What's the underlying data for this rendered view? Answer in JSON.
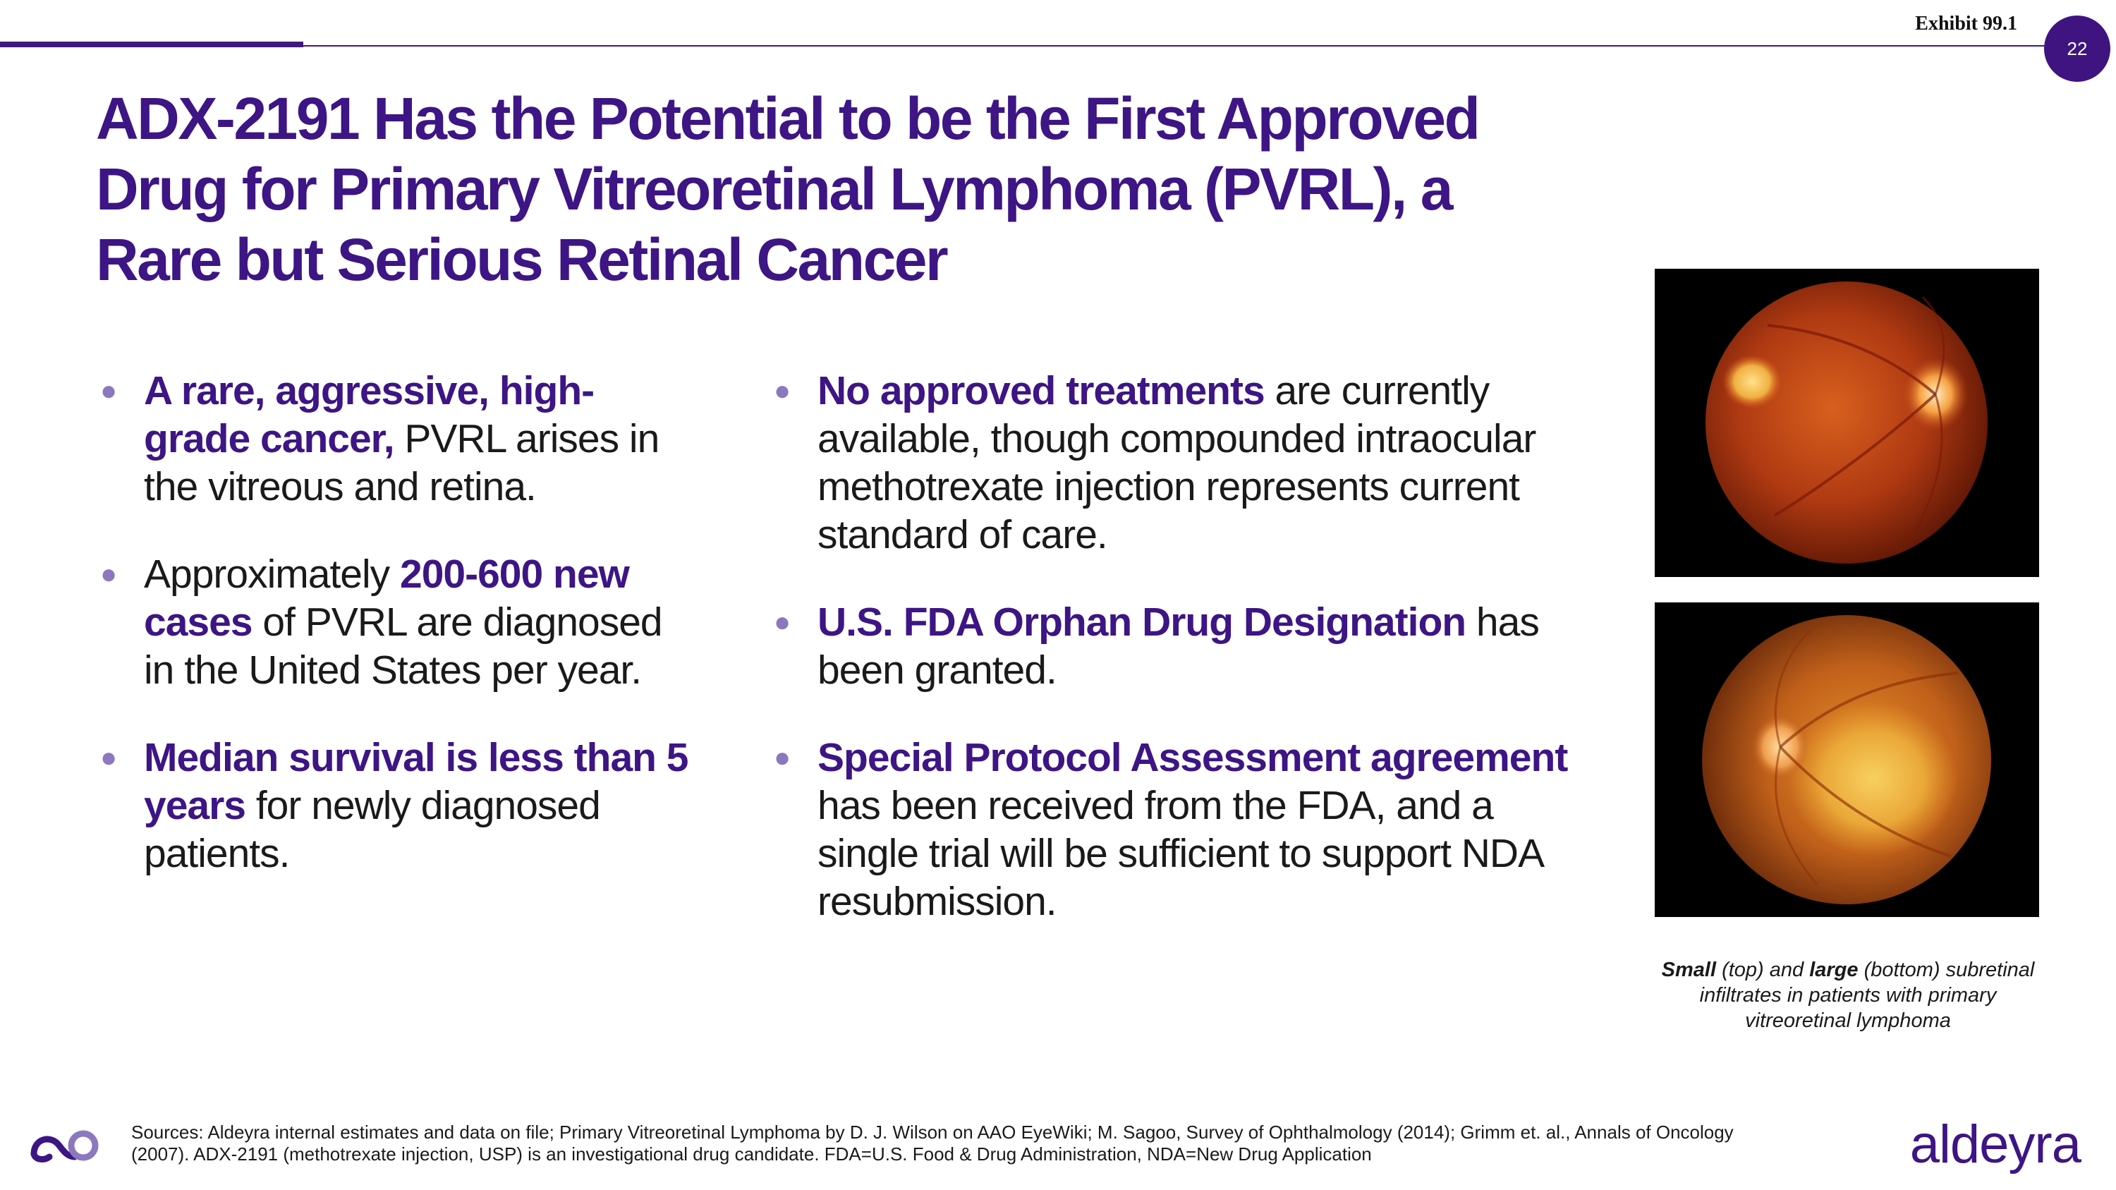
{
  "header": {
    "exhibit": "Exhibit 99.1",
    "page_number": "22"
  },
  "title": "ADX-2191 Has the Potential to be the First Approved Drug for Primary Vitreoretinal Lymphoma (PVRL), a Rare but Serious Retinal Cancer",
  "left_bullets": [
    {
      "bold": "A rare, aggressive, high-grade cancer,",
      "rest": " PVRL arises in the vitreous and retina."
    },
    {
      "pre": "Approximately ",
      "bold": "200-600 new cases",
      "rest": " of PVRL are diagnosed in the United States per year."
    },
    {
      "bold": "Median survival is less than 5 years",
      "rest": " for newly diagnosed patients."
    }
  ],
  "right_bullets": [
    {
      "bold": "No approved treatments",
      "rest": " are currently available, though compounded intraocular methotrexate injection represents current standard of care."
    },
    {
      "bold": "U.S. FDA Orphan Drug Designation",
      "rest": " has been granted."
    },
    {
      "bold": "Special Protocol Assessment agreement",
      "rest": " has been received from the FDA, and a single trial will be sufficient to support NDA resubmission."
    }
  ],
  "caption": {
    "small": "Small",
    "part1": " (top) and ",
    "large": "large",
    "part2": " (bottom) subretinal infiltrates in patients with primary vitreoretinal lymphoma"
  },
  "footer": {
    "sources": "Sources: Aldeyra internal estimates and data on file; Primary Vitreoretinal Lymphoma by D. J. Wilson on AAO EyeWiki; M. Sagoo, Survey of Ophthalmology (2014); Grimm et. al., Annals of Oncology (2007). ADX-2191 (methotrexate injection, USP) is an investigational drug candidate. FDA=U.S. Food & Drug Administration, NDA=New Drug Application",
    "brand": "aldeyra"
  },
  "colors": {
    "brand_purple": "#3d1584",
    "bullet_dot": "#8c78be"
  }
}
